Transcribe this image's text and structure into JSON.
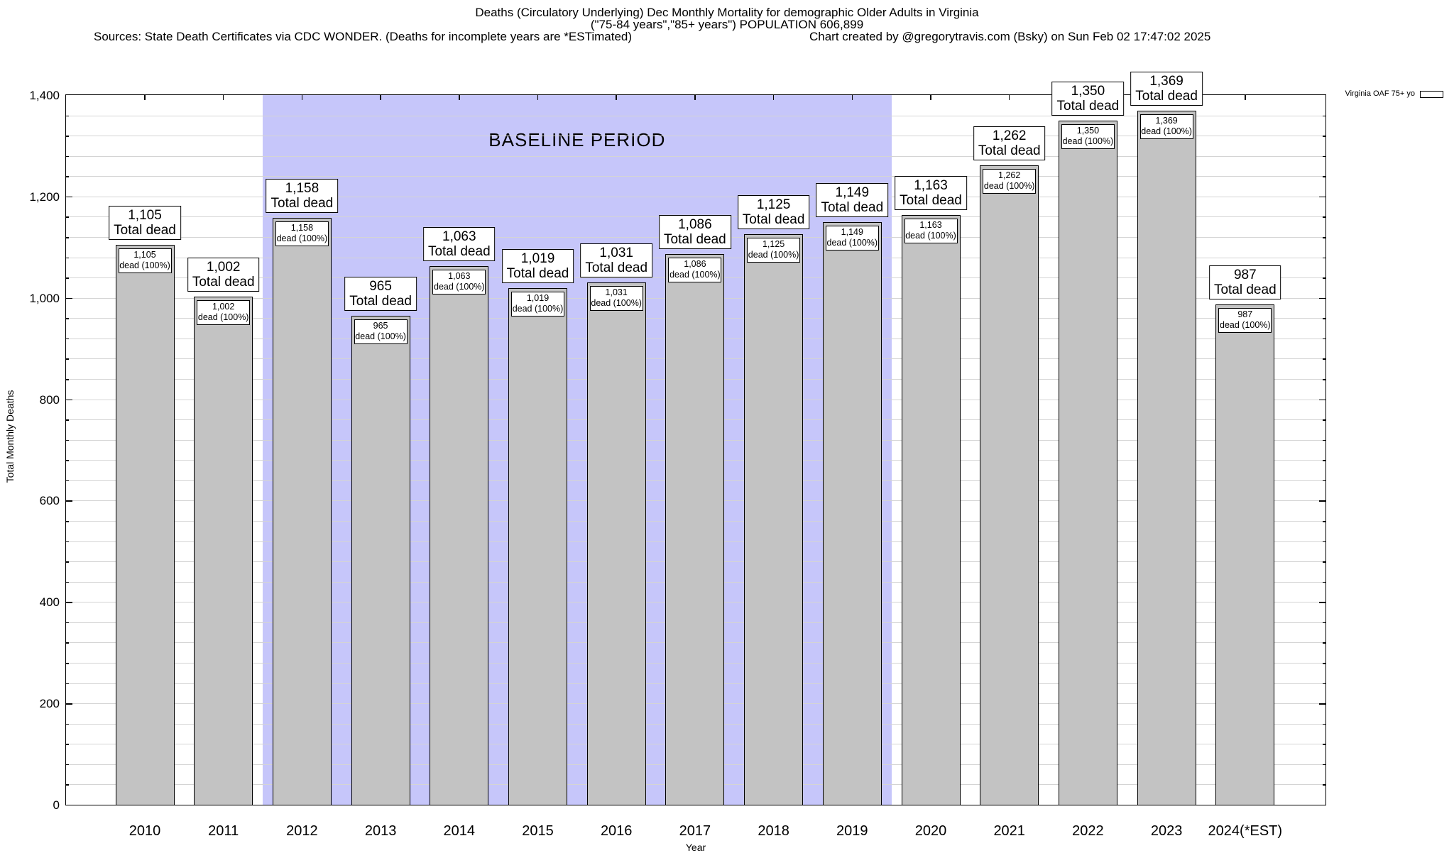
{
  "title": {
    "line1": "Deaths (Circulatory Underlying) Dec Monthly Mortality for demographic Older Adults in Virginia",
    "line2": "(\"75-84 years\",\"85+ years\") POPULATION 606,899",
    "line3_sources": "Sources: State Death Certificates via CDC WONDER. (Deaths for incomplete years are *ESTimated)",
    "line3_credit": "Chart created by @gregorytravis.com (Bsky) on Sun Feb 02 17:47:02 2025"
  },
  "legend": {
    "label": "Virginia OAF 75+ yo",
    "swatch_color": "#c3c3c3"
  },
  "chart_data": {
    "type": "bar",
    "title": "Deaths (Circulatory Underlying) Dec Monthly Mortality for demographic Older Adults in Virginia",
    "xlabel": "Year",
    "ylabel": "Total Monthly Deaths",
    "ylim": [
      0,
      1400
    ],
    "ytick_interval": 200,
    "minor_grid_interval": 40,
    "grid": true,
    "legend_position": "top-right",
    "categories": [
      "2010",
      "2011",
      "2012",
      "2013",
      "2014",
      "2015",
      "2016",
      "2017",
      "2018",
      "2019",
      "2020",
      "2021",
      "2022",
      "2023",
      "2024(*EST)"
    ],
    "series": [
      {
        "name": "Virginia OAF 75+ yo",
        "values": [
          1105,
          1002,
          1158,
          965,
          1063,
          1019,
          1031,
          1086,
          1125,
          1149,
          1163,
          1262,
          1350,
          1369,
          987
        ],
        "formatted_values": [
          "1,105",
          "1,002",
          "1,158",
          "965",
          "1,063",
          "1,019",
          "1,031",
          "1,086",
          "1,125",
          "1,149",
          "1,163",
          "1,262",
          "1,350",
          "1,369",
          "987"
        ]
      }
    ],
    "bar_top_label_suffix": "Total dead",
    "bar_inner_label_suffix": "dead (100%)",
    "bar_color": "#c3c3c3",
    "baseline_period": {
      "label": "BASELINE PERIOD",
      "from_category": "2012",
      "to_category": "2019",
      "from_index": 2,
      "to_index": 9,
      "color": "#c6c6fa"
    },
    "ytick_labels": [
      "0",
      "200",
      "400",
      "600",
      "800",
      "1,000",
      "1,200",
      "1,400"
    ]
  }
}
